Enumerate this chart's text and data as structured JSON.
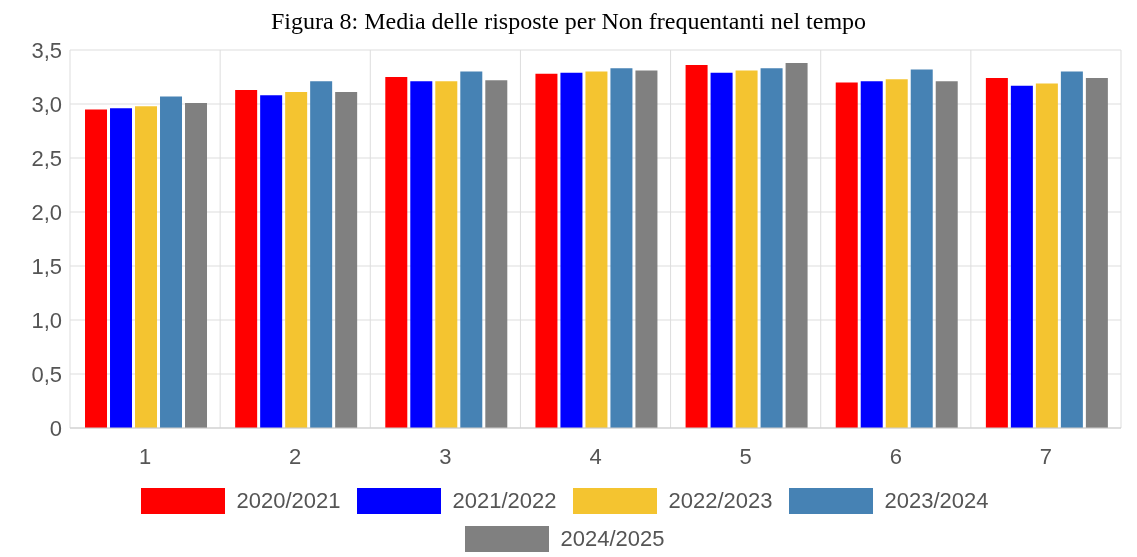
{
  "chart_data": {
    "type": "bar",
    "title": "Figura 8: Media delle risposte per Non frequentanti nel tempo",
    "categories": [
      "1",
      "2",
      "3",
      "4",
      "5",
      "6",
      "7"
    ],
    "series": [
      {
        "name": "2020/2021",
        "color": "#ff0000",
        "values": [
          2.95,
          3.13,
          3.25,
          3.28,
          3.36,
          3.2,
          3.24
        ]
      },
      {
        "name": "2021/2022",
        "color": "#0000ff",
        "values": [
          2.96,
          3.08,
          3.21,
          3.29,
          3.29,
          3.21,
          3.17
        ]
      },
      {
        "name": "2022/2023",
        "color": "#f4c430",
        "values": [
          2.98,
          3.11,
          3.21,
          3.3,
          3.31,
          3.23,
          3.19
        ]
      },
      {
        "name": "2023/2024",
        "color": "#4682b4",
        "values": [
          3.07,
          3.21,
          3.3,
          3.33,
          3.33,
          3.32,
          3.3
        ]
      },
      {
        "name": "2024/2025",
        "color": "#808080",
        "values": [
          3.01,
          3.11,
          3.22,
          3.31,
          3.38,
          3.21,
          3.24
        ]
      }
    ],
    "ylim": [
      0,
      3.5
    ],
    "yticks": [
      0,
      {
        "value": 0.5,
        "label": "0,5"
      },
      {
        "value": 1,
        "label": "1,0"
      },
      {
        "value": 1.5,
        "label": "1,5"
      },
      {
        "value": 2,
        "label": "2,0"
      },
      {
        "value": 2.5,
        "label": "2,5"
      },
      {
        "value": 3,
        "label": "3,0"
      },
      {
        "value": 3.5,
        "label": "3,5"
      }
    ],
    "grid": true,
    "legend": "bottom"
  }
}
